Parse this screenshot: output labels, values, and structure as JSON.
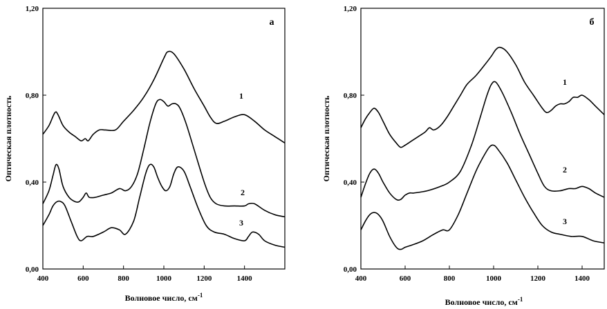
{
  "chart_data": [
    {
      "type": "line",
      "panel_label": "а",
      "xlabel": "Волновое число, см",
      "xlabel_sup": "-1",
      "ylabel": "Оптическая плотность",
      "xlim": [
        400,
        1600
      ],
      "ylim": [
        0,
        1.2
      ],
      "xticks": [
        "400",
        "600",
        "800",
        "1000",
        "1200",
        "1400"
      ],
      "yticks": [
        "0,00",
        "0,40",
        "0,80",
        "1,20"
      ],
      "grid": false,
      "legend": "none",
      "series": [
        {
          "name": "1",
          "x": [
            400,
            430,
            460,
            475,
            500,
            530,
            560,
            590,
            610,
            625,
            650,
            680,
            710,
            760,
            800,
            850,
            900,
            950,
            1000,
            1020,
            1050,
            1100,
            1150,
            1200,
            1230,
            1260,
            1300,
            1350,
            1400,
            1450,
            1500,
            1550,
            1600
          ],
          "y": [
            0.62,
            0.66,
            0.72,
            0.71,
            0.66,
            0.63,
            0.61,
            0.59,
            0.6,
            0.59,
            0.62,
            0.64,
            0.64,
            0.64,
            0.68,
            0.73,
            0.79,
            0.87,
            0.97,
            1.0,
            0.99,
            0.92,
            0.83,
            0.75,
            0.7,
            0.67,
            0.68,
            0.7,
            0.71,
            0.68,
            0.64,
            0.61,
            0.58
          ]
        },
        {
          "name": "2",
          "x": [
            400,
            430,
            450,
            465,
            480,
            500,
            530,
            560,
            580,
            600,
            615,
            630,
            660,
            700,
            740,
            780,
            810,
            840,
            870,
            900,
            930,
            960,
            980,
            1000,
            1020,
            1040,
            1060,
            1080,
            1110,
            1150,
            1200,
            1230,
            1260,
            1300,
            1350,
            1400,
            1420,
            1450,
            1500,
            1550,
            1600
          ],
          "y": [
            0.3,
            0.36,
            0.43,
            0.48,
            0.46,
            0.38,
            0.33,
            0.31,
            0.31,
            0.33,
            0.35,
            0.33,
            0.33,
            0.34,
            0.35,
            0.37,
            0.36,
            0.38,
            0.44,
            0.55,
            0.67,
            0.76,
            0.78,
            0.77,
            0.75,
            0.76,
            0.76,
            0.74,
            0.67,
            0.55,
            0.4,
            0.33,
            0.3,
            0.29,
            0.29,
            0.29,
            0.3,
            0.3,
            0.27,
            0.25,
            0.24
          ]
        },
        {
          "name": "3",
          "x": [
            400,
            430,
            450,
            470,
            490,
            510,
            540,
            570,
            590,
            620,
            650,
            700,
            740,
            780,
            810,
            850,
            880,
            910,
            930,
            950,
            970,
            990,
            1010,
            1030,
            1050,
            1070,
            1100,
            1130,
            1170,
            1210,
            1250,
            1300,
            1350,
            1400,
            1420,
            1440,
            1470,
            1500,
            1550,
            1600
          ],
          "y": [
            0.2,
            0.25,
            0.29,
            0.31,
            0.31,
            0.29,
            0.22,
            0.15,
            0.13,
            0.15,
            0.15,
            0.17,
            0.19,
            0.18,
            0.16,
            0.22,
            0.33,
            0.44,
            0.48,
            0.47,
            0.42,
            0.38,
            0.36,
            0.38,
            0.44,
            0.47,
            0.45,
            0.38,
            0.28,
            0.2,
            0.17,
            0.16,
            0.14,
            0.13,
            0.15,
            0.17,
            0.16,
            0.13,
            0.11,
            0.1
          ]
        }
      ]
    },
    {
      "type": "line",
      "panel_label": "б",
      "xlabel": "Волновое число, см",
      "xlabel_sup": "-1",
      "ylabel": "Оптическая плотность",
      "xlim": [
        400,
        1500
      ],
      "ylim": [
        0,
        1.2
      ],
      "xticks": [
        "400",
        "600",
        "800",
        "1000",
        "1200",
        "1400"
      ],
      "yticks": [
        "0,00",
        "0,40",
        "0,80",
        "1,20"
      ],
      "grid": false,
      "legend": "none",
      "series": [
        {
          "name": "1",
          "x": [
            400,
            420,
            440,
            460,
            480,
            500,
            530,
            560,
            580,
            600,
            630,
            660,
            690,
            710,
            730,
            760,
            790,
            820,
            850,
            880,
            920,
            960,
            990,
            1010,
            1030,
            1060,
            1100,
            1140,
            1180,
            1220,
            1240,
            1260,
            1280,
            1300,
            1320,
            1340,
            1360,
            1380,
            1400,
            1430,
            1460,
            1500
          ],
          "y": [
            0.65,
            0.69,
            0.72,
            0.74,
            0.72,
            0.68,
            0.62,
            0.58,
            0.56,
            0.57,
            0.59,
            0.61,
            0.63,
            0.65,
            0.64,
            0.66,
            0.7,
            0.75,
            0.8,
            0.85,
            0.89,
            0.94,
            0.98,
            1.01,
            1.02,
            1.0,
            0.94,
            0.86,
            0.8,
            0.74,
            0.72,
            0.73,
            0.75,
            0.76,
            0.76,
            0.77,
            0.79,
            0.79,
            0.8,
            0.78,
            0.75,
            0.71
          ]
        },
        {
          "name": "2",
          "x": [
            400,
            420,
            440,
            460,
            480,
            500,
            530,
            560,
            580,
            600,
            620,
            640,
            700,
            760,
            800,
            850,
            900,
            940,
            970,
            990,
            1010,
            1040,
            1080,
            1120,
            1160,
            1200,
            1230,
            1260,
            1300,
            1340,
            1370,
            1400,
            1430,
            1460,
            1500
          ],
          "y": [
            0.33,
            0.39,
            0.44,
            0.46,
            0.44,
            0.4,
            0.35,
            0.32,
            0.32,
            0.34,
            0.35,
            0.35,
            0.36,
            0.38,
            0.4,
            0.45,
            0.57,
            0.7,
            0.8,
            0.85,
            0.86,
            0.81,
            0.72,
            0.62,
            0.53,
            0.44,
            0.38,
            0.36,
            0.36,
            0.37,
            0.37,
            0.38,
            0.37,
            0.35,
            0.33
          ]
        },
        {
          "name": "3",
          "x": [
            400,
            420,
            440,
            460,
            480,
            500,
            530,
            560,
            580,
            600,
            630,
            680,
            730,
            770,
            800,
            840,
            880,
            920,
            950,
            980,
            1000,
            1020,
            1060,
            1100,
            1140,
            1180,
            1220,
            1260,
            1300,
            1350,
            1400,
            1450,
            1500
          ],
          "y": [
            0.18,
            0.22,
            0.25,
            0.26,
            0.25,
            0.22,
            0.15,
            0.1,
            0.09,
            0.1,
            0.11,
            0.13,
            0.16,
            0.18,
            0.18,
            0.25,
            0.35,
            0.45,
            0.51,
            0.56,
            0.57,
            0.55,
            0.49,
            0.41,
            0.33,
            0.26,
            0.2,
            0.17,
            0.16,
            0.15,
            0.15,
            0.13,
            0.12
          ]
        }
      ]
    }
  ],
  "colors": {
    "line": "#000000",
    "axis": "#000000",
    "background": "#ffffff"
  }
}
